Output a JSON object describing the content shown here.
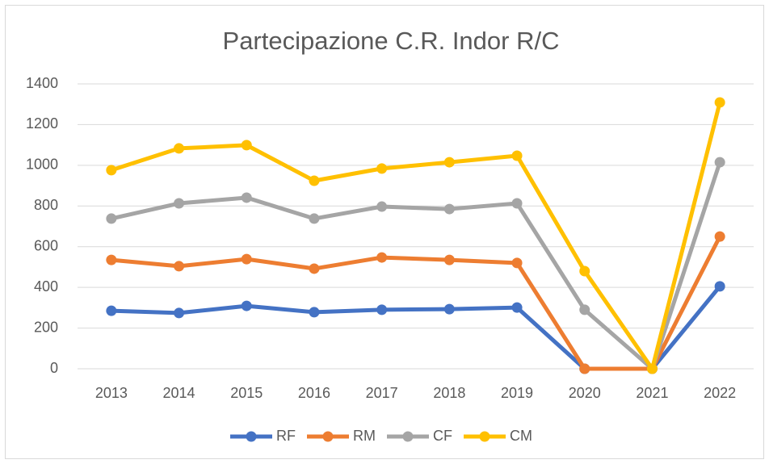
{
  "chart_data": {
    "type": "line",
    "title": "Partecipazione C.R. Indor R/C",
    "categories": [
      "2013",
      "2014",
      "2015",
      "2016",
      "2017",
      "2018",
      "2019",
      "2020",
      "2021",
      "2022"
    ],
    "series": [
      {
        "name": "RF",
        "color": "#4472c4",
        "values": [
          285,
          274,
          309,
          278,
          290,
          293,
          301,
          0,
          0,
          405
        ]
      },
      {
        "name": "RM",
        "color": "#ed7d31",
        "values": [
          535,
          504,
          539,
          492,
          547,
          535,
          520,
          0,
          0,
          650
        ]
      },
      {
        "name": "CF",
        "color": "#a5a5a5",
        "values": [
          738,
          813,
          841,
          738,
          797,
          785,
          813,
          290,
          0,
          1015
        ]
      },
      {
        "name": "CM",
        "color": "#ffc000",
        "values": [
          976,
          1083,
          1099,
          924,
          984,
          1015,
          1047,
          480,
          0,
          1309
        ]
      }
    ],
    "ylim": [
      0,
      1400
    ],
    "yticks": [
      0,
      200,
      400,
      600,
      800,
      1000,
      1200,
      1400
    ],
    "grid": true,
    "legend": "bottom"
  }
}
